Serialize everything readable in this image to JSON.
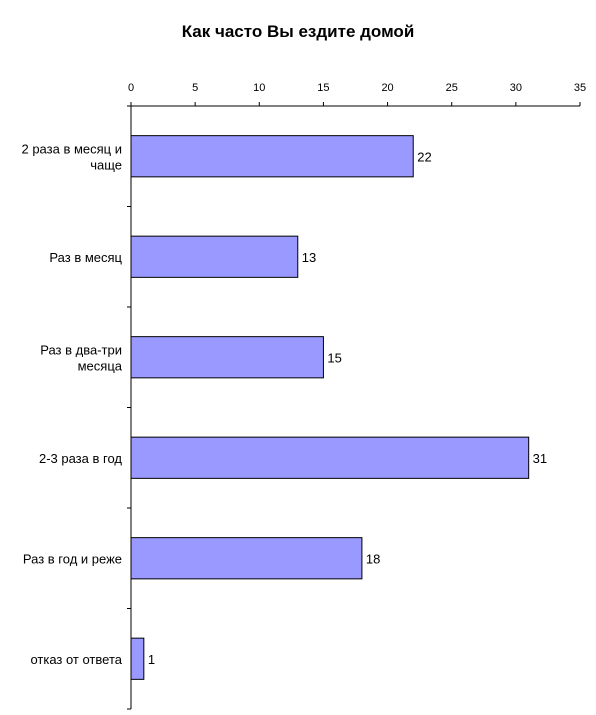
{
  "chart_data": {
    "type": "bar",
    "orientation": "horizontal",
    "title": "Как часто Вы ездите домой",
    "xlabel": "",
    "ylabel": "",
    "x_axis_position": "top",
    "xlim": [
      0,
      35
    ],
    "x_ticks": [
      0,
      5,
      10,
      15,
      20,
      25,
      30,
      35
    ],
    "grid": false,
    "legend": "none",
    "bar_color": "#9999ff",
    "bar_border_color": "#000000",
    "categories": [
      [
        "2 раза в месяц и",
        "чаще"
      ],
      [
        "Раз в месяц"
      ],
      [
        "Раз в два-три",
        "месяца"
      ],
      [
        "2-3 раза в год"
      ],
      [
        "Раз в год и реже"
      ],
      [
        "отказ от ответа"
      ]
    ],
    "values": [
      22,
      13,
      15,
      31,
      18,
      1
    ],
    "data_labels": [
      "22",
      "13",
      "15",
      "31",
      "18",
      "1"
    ]
  }
}
